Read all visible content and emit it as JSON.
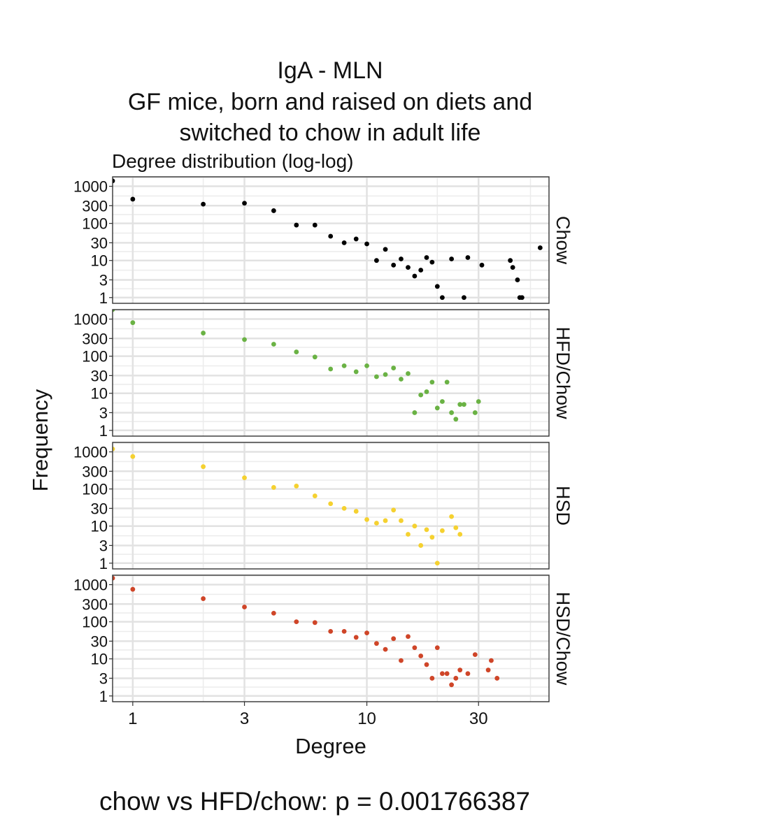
{
  "figure": {
    "title_lines": [
      "IgA - MLN",
      "GF mice, born and raised on diets and",
      "switched to chow in adult life"
    ],
    "subtitle": "Degree distribution (log-log)",
    "footnote": "chow vs HFD/chow: p = 0.001766387"
  },
  "chart_data": {
    "type": "scatter",
    "scale": "log-log",
    "xlabel": "Degree",
    "ylabel": "Frequency",
    "x_ticks": [
      1,
      3,
      10,
      30
    ],
    "y_ticks": [
      1,
      3,
      10,
      30,
      100,
      300,
      1000
    ],
    "xlim": [
      0.82,
      60
    ],
    "ylim": [
      0.7,
      1800
    ],
    "grid": true,
    "legend": "none",
    "panels": [
      {
        "name": "Chow",
        "color": "#000000",
        "points": [
          [
            0.82,
            1400
          ],
          [
            1,
            450
          ],
          [
            2,
            330
          ],
          [
            3,
            350
          ],
          [
            4,
            220
          ],
          [
            5,
            90
          ],
          [
            6,
            90
          ],
          [
            7,
            45
          ],
          [
            8,
            30
          ],
          [
            9,
            38
          ],
          [
            10,
            28
          ],
          [
            11,
            10
          ],
          [
            12,
            20
          ],
          [
            13,
            7.5
          ],
          [
            14,
            11
          ],
          [
            15,
            6.5
          ],
          [
            16,
            3.8
          ],
          [
            17,
            5.5
          ],
          [
            18,
            12
          ],
          [
            19,
            9
          ],
          [
            20,
            2
          ],
          [
            21,
            1
          ],
          [
            23,
            11
          ],
          [
            26,
            1
          ],
          [
            27,
            12
          ],
          [
            31,
            7.5
          ],
          [
            41,
            10
          ],
          [
            42,
            6.5
          ],
          [
            44,
            3
          ],
          [
            45,
            1
          ],
          [
            46,
            1
          ],
          [
            55,
            22
          ]
        ]
      },
      {
        "name": "HFD/Chow",
        "color": "#6ab244",
        "points": [
          [
            0.82,
            1800
          ],
          [
            1,
            800
          ],
          [
            2,
            420
          ],
          [
            3,
            280
          ],
          [
            4,
            210
          ],
          [
            5,
            130
          ],
          [
            6,
            95
          ],
          [
            7,
            45
          ],
          [
            8,
            55
          ],
          [
            9,
            38
          ],
          [
            10,
            55
          ],
          [
            11,
            28
          ],
          [
            12,
            32
          ],
          [
            13,
            48
          ],
          [
            14,
            24
          ],
          [
            15,
            34
          ],
          [
            16,
            3
          ],
          [
            17,
            9
          ],
          [
            18,
            11
          ],
          [
            19,
            20
          ],
          [
            20,
            4
          ],
          [
            21,
            6
          ],
          [
            22,
            20
          ],
          [
            23,
            3
          ],
          [
            24,
            2
          ],
          [
            25,
            5
          ],
          [
            26,
            5
          ],
          [
            29,
            3
          ],
          [
            30,
            6
          ]
        ]
      },
      {
        "name": "HSD",
        "color": "#f5d130",
        "points": [
          [
            0.82,
            1200
          ],
          [
            1,
            750
          ],
          [
            2,
            400
          ],
          [
            3,
            200
          ],
          [
            4,
            110
          ],
          [
            5,
            120
          ],
          [
            6,
            65
          ],
          [
            7,
            40
          ],
          [
            8,
            30
          ],
          [
            9,
            25
          ],
          [
            10,
            15
          ],
          [
            11,
            12
          ],
          [
            12,
            14
          ],
          [
            13,
            27
          ],
          [
            14,
            14
          ],
          [
            15,
            6
          ],
          [
            16,
            10
          ],
          [
            17,
            3
          ],
          [
            18,
            8
          ],
          [
            19,
            5
          ],
          [
            20,
            1
          ],
          [
            21,
            7.5
          ],
          [
            23,
            18
          ],
          [
            24,
            9
          ],
          [
            25,
            6
          ]
        ]
      },
      {
        "name": "HSD/Chow",
        "color": "#cf4528",
        "points": [
          [
            0.82,
            1500
          ],
          [
            1,
            750
          ],
          [
            2,
            420
          ],
          [
            3,
            250
          ],
          [
            4,
            170
          ],
          [
            5,
            100
          ],
          [
            6,
            95
          ],
          [
            7,
            55
          ],
          [
            8,
            55
          ],
          [
            9,
            38
          ],
          [
            10,
            50
          ],
          [
            11,
            26
          ],
          [
            12,
            18
          ],
          [
            13,
            35
          ],
          [
            14,
            9
          ],
          [
            15,
            40
          ],
          [
            16,
            20
          ],
          [
            17,
            12
          ],
          [
            18,
            7
          ],
          [
            19,
            3
          ],
          [
            20,
            20
          ],
          [
            21,
            4
          ],
          [
            22,
            4
          ],
          [
            23,
            2
          ],
          [
            24,
            3
          ],
          [
            25,
            5
          ],
          [
            27,
            4
          ],
          [
            29,
            13
          ],
          [
            33,
            5
          ],
          [
            34,
            9
          ],
          [
            36,
            3
          ]
        ]
      }
    ]
  }
}
